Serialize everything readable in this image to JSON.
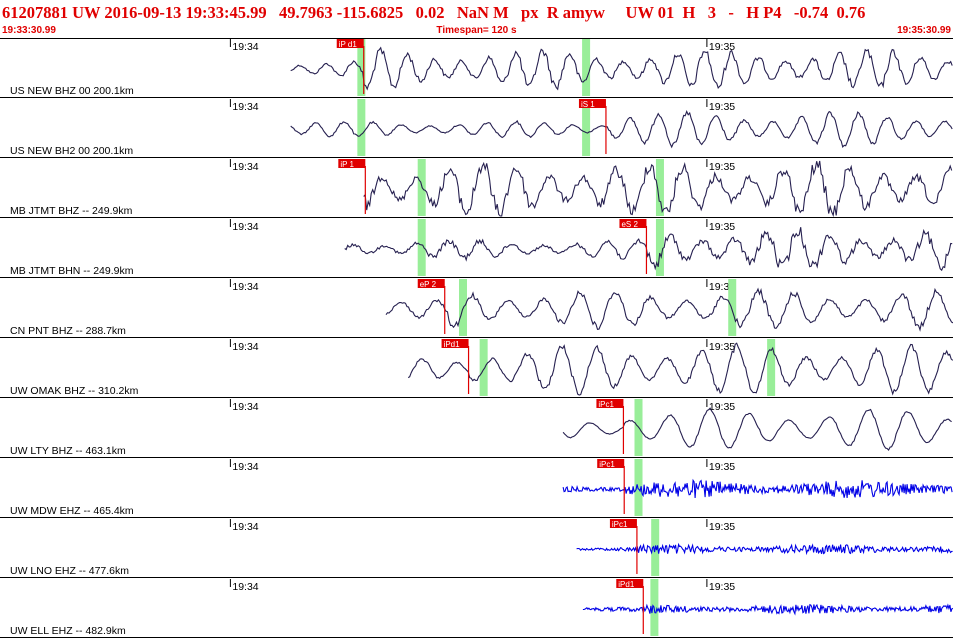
{
  "header": {
    "event_id": "61207881",
    "network": "UW",
    "date": "2016-09-13",
    "time": "19:33:45.99",
    "lat": "49.7963",
    "lon": "-115.6825",
    "depth": "0.02",
    "mag": "NaN",
    "mag_type": "M",
    "flags": "px  R amyw",
    "net2": "UW",
    "version": "01",
    "h": "H",
    "num": "3",
    "dash": "-",
    "hp": "H P4",
    "v1": "-0.74",
    "v2": "0.76",
    "start_time": "19:33:30.99",
    "timespan": "Timespan= 120 s",
    "end_time": "19:35:30.99"
  },
  "chart_data": {
    "type": "line",
    "title": "",
    "xlabel": "",
    "ylabel": "",
    "x_range": [
      "19:33:30.99",
      "19:35:30.99"
    ],
    "x_tick_labels": [
      {
        "label": "19:34",
        "t": 29.01
      },
      {
        "label": "19:35",
        "t": 89.01
      }
    ],
    "grid": false,
    "colors": {
      "trace": "#262050",
      "trace_short_period": "#0000e6",
      "pick": "#e00000",
      "window": "#99ee99"
    },
    "series": [
      {
        "name": "US NEW BHZ 00 200.1km",
        "start": 36.6,
        "amp": 0.55,
        "period": 3.4,
        "noise": 0.18,
        "color_key": "trace",
        "picks": [
          {
            "label": "iP d1",
            "t": 45.8
          }
        ],
        "windows": [
          45.5,
          73.8
        ]
      },
      {
        "name": "US NEW BH2 00 200.1km",
        "start": 36.6,
        "amp": 0.5,
        "period": 3.6,
        "noise": 0.12,
        "color_key": "trace",
        "picks": [
          {
            "label": "iS 1",
            "t": 76.3
          }
        ],
        "windows": [
          45.5,
          73.8
        ]
      },
      {
        "name": "MB JTMT BHZ -- 249.9km",
        "start": 45.8,
        "amp": 0.75,
        "period": 4.2,
        "noise": 0.25,
        "color_key": "trace",
        "picks": [
          {
            "label": "iP 1",
            "t": 46.0
          }
        ],
        "windows": [
          53.1,
          83.1
        ]
      },
      {
        "name": "MB JTMT BHN -- 249.9km",
        "start": 43.4,
        "amp": 0.55,
        "period": 4.0,
        "noise": 0.28,
        "color_key": "trace",
        "picks": [
          {
            "label": "eS 2",
            "t": 81.4
          }
        ],
        "windows": [
          53.1,
          83.1
        ]
      },
      {
        "name": "CN PNT BHZ -- 288.7km",
        "start": 48.6,
        "amp": 0.55,
        "period": 4.5,
        "noise": 0.15,
        "color_key": "trace",
        "picks": [
          {
            "label": "eP 2",
            "t": 56.0
          }
        ],
        "windows": [
          58.3,
          92.2
        ]
      },
      {
        "name": "UW OMAK BHZ -- 310.2km",
        "start": 51.4,
        "amp": 0.7,
        "period": 4.4,
        "noise": 0.1,
        "color_key": "trace",
        "picks": [
          {
            "label": "iPd1",
            "t": 59.0
          }
        ],
        "windows": [
          60.9,
          97.1
        ]
      },
      {
        "name": "UW LTY BHZ -- 463.1km",
        "start": 70.9,
        "amp": 0.6,
        "period": 5.0,
        "noise": 0.05,
        "color_key": "trace",
        "picks": [
          {
            "label": "iPc1",
            "t": 78.5
          }
        ],
        "windows": [
          80.4
        ]
      },
      {
        "name": "UW MDW EHZ -- 465.4km",
        "start": 70.9,
        "amp": 0.22,
        "period": 0.6,
        "noise": 0.5,
        "color_key": "trace_short_period",
        "picks": [
          {
            "label": "iPc1",
            "t": 78.6
          }
        ],
        "windows": [
          80.4
        ]
      },
      {
        "name": "UW LNO EHZ -- 477.6km",
        "start": 72.6,
        "amp": 0.12,
        "period": 0.6,
        "noise": 0.5,
        "color_key": "trace_short_period",
        "picks": [
          {
            "label": "iPc1",
            "t": 80.2
          }
        ],
        "windows": [
          82.5
        ]
      },
      {
        "name": "UW ELL EHZ -- 482.9km",
        "start": 73.4,
        "amp": 0.12,
        "period": 0.6,
        "noise": 0.5,
        "color_key": "trace_short_period",
        "picks": [
          {
            "label": "iPd1",
            "t": 81.0
          }
        ],
        "windows": [
          82.4
        ]
      }
    ]
  }
}
